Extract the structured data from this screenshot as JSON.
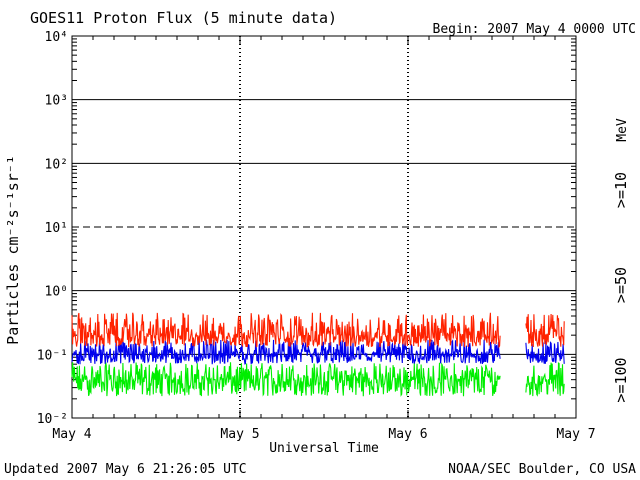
{
  "chart_data": {
    "type": "line",
    "title": "GOES11 Proton Flux (5 minute data)",
    "begin": "Begin: 2007 May 4 0000 UTC",
    "xlabel": "Universal Time",
    "ylabel": "Particles cm⁻²s⁻¹sr⁻¹",
    "x_ticks": [
      "May 4",
      "May 5",
      "May 6",
      "May 7"
    ],
    "y_ticks": [
      "10⁻²",
      "10⁻¹",
      "10⁰",
      "10¹",
      "10²",
      "10³",
      "10⁴"
    ],
    "y_scale": "log",
    "ylim": [
      0.01,
      10000
    ],
    "xlim_days": [
      0,
      3
    ],
    "units_label": "MeV",
    "gap_days": [
      2.55,
      2.7
    ],
    "series": [
      {
        "name": ">=10",
        "color": "#ff2200",
        "median": 0.2,
        "min": 0.13,
        "max": 0.45
      },
      {
        "name": ">=50",
        "color": "#0000ee",
        "median": 0.1,
        "min": 0.07,
        "max": 0.17
      },
      {
        "name": ">=100",
        "color": "#00ee00",
        "median": 0.04,
        "min": 0.022,
        "max": 0.075
      }
    ]
  },
  "footer": {
    "updated": "Updated 2007 May  6 21:26:05 UTC",
    "credit": "NOAA/SEC Boulder, CO USA"
  }
}
